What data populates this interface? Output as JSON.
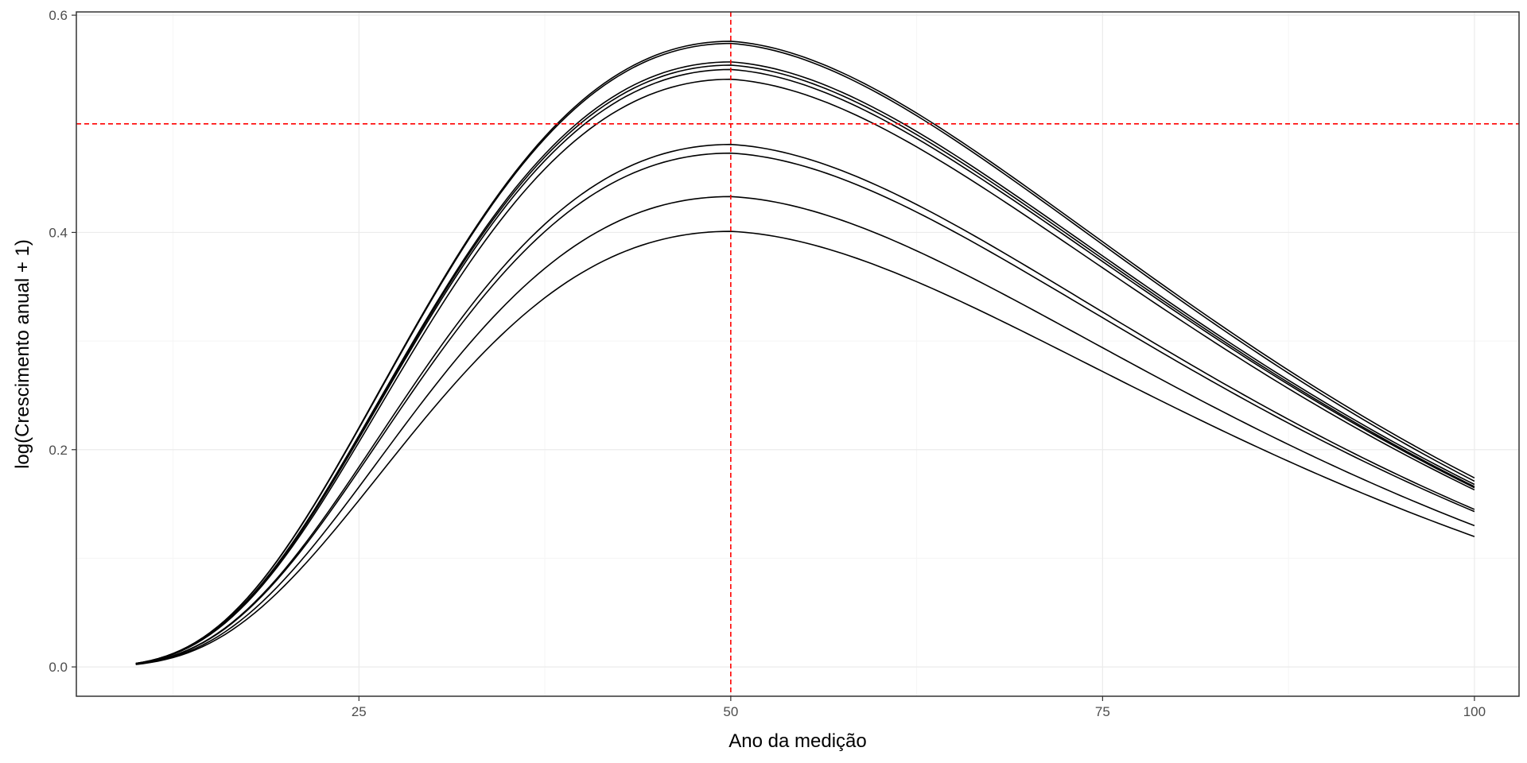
{
  "chart_data": {
    "type": "line",
    "title": "",
    "xlabel": "Ano da medição",
    "ylabel": "log(Crescimento anual + 1)",
    "xlim": [
      6,
      103
    ],
    "ylim": [
      -0.027,
      0.603
    ],
    "x_ticks": [
      {
        "value": 25,
        "label": "25"
      },
      {
        "value": 50,
        "label": "50"
      },
      {
        "value": 75,
        "label": "75"
      },
      {
        "value": 100,
        "label": "100"
      }
    ],
    "y_ticks": [
      {
        "value": 0.0,
        "label": "0.0"
      },
      {
        "value": 0.2,
        "label": "0.2"
      },
      {
        "value": 0.4,
        "label": "0.4"
      },
      {
        "value": 0.6,
        "label": "0.6"
      }
    ],
    "x_minor_gridlines": [
      12.5,
      37.5,
      62.5,
      87.5
    ],
    "y_minor_gridlines": [
      0.1,
      0.3,
      0.5
    ],
    "grid": true,
    "legend": "none",
    "reference_lines": [
      {
        "orientation": "vertical",
        "value": 50,
        "color": "#ff0000",
        "style": "dashed"
      },
      {
        "orientation": "horizontal",
        "value": 0.5,
        "color": "#ff0000",
        "style": "dashed"
      }
    ],
    "curve_model": "log-normal shaped growth curves starting at x=10 and ending at x=100, peaking at x=50",
    "series": [
      {
        "peak_x": 50,
        "peak_y": 0.576,
        "end_x": 100,
        "end_y": 0.174
      },
      {
        "peak_x": 50,
        "peak_y": 0.574,
        "end_x": 100,
        "end_y": 0.171
      },
      {
        "peak_x": 50,
        "peak_y": 0.557,
        "end_x": 100,
        "end_y": 0.168
      },
      {
        "peak_x": 50,
        "peak_y": 0.554,
        "end_x": 100,
        "end_y": 0.166
      },
      {
        "peak_x": 50,
        "peak_y": 0.55,
        "end_x": 100,
        "end_y": 0.165
      },
      {
        "peak_x": 50,
        "peak_y": 0.541,
        "end_x": 100,
        "end_y": 0.163
      },
      {
        "peak_x": 50,
        "peak_y": 0.481,
        "end_x": 100,
        "end_y": 0.145
      },
      {
        "peak_x": 50,
        "peak_y": 0.473,
        "end_x": 100,
        "end_y": 0.143
      },
      {
        "peak_x": 50,
        "peak_y": 0.433,
        "end_x": 100,
        "end_y": 0.13
      },
      {
        "peak_x": 50,
        "peak_y": 0.401,
        "end_x": 100,
        "end_y": 0.12
      }
    ],
    "colors": {
      "series": "#000000",
      "reference": "#ff0000",
      "grid_major": "#ebebeb",
      "grid_minor": "#f5f5f5",
      "panel_border": "#333333"
    }
  }
}
